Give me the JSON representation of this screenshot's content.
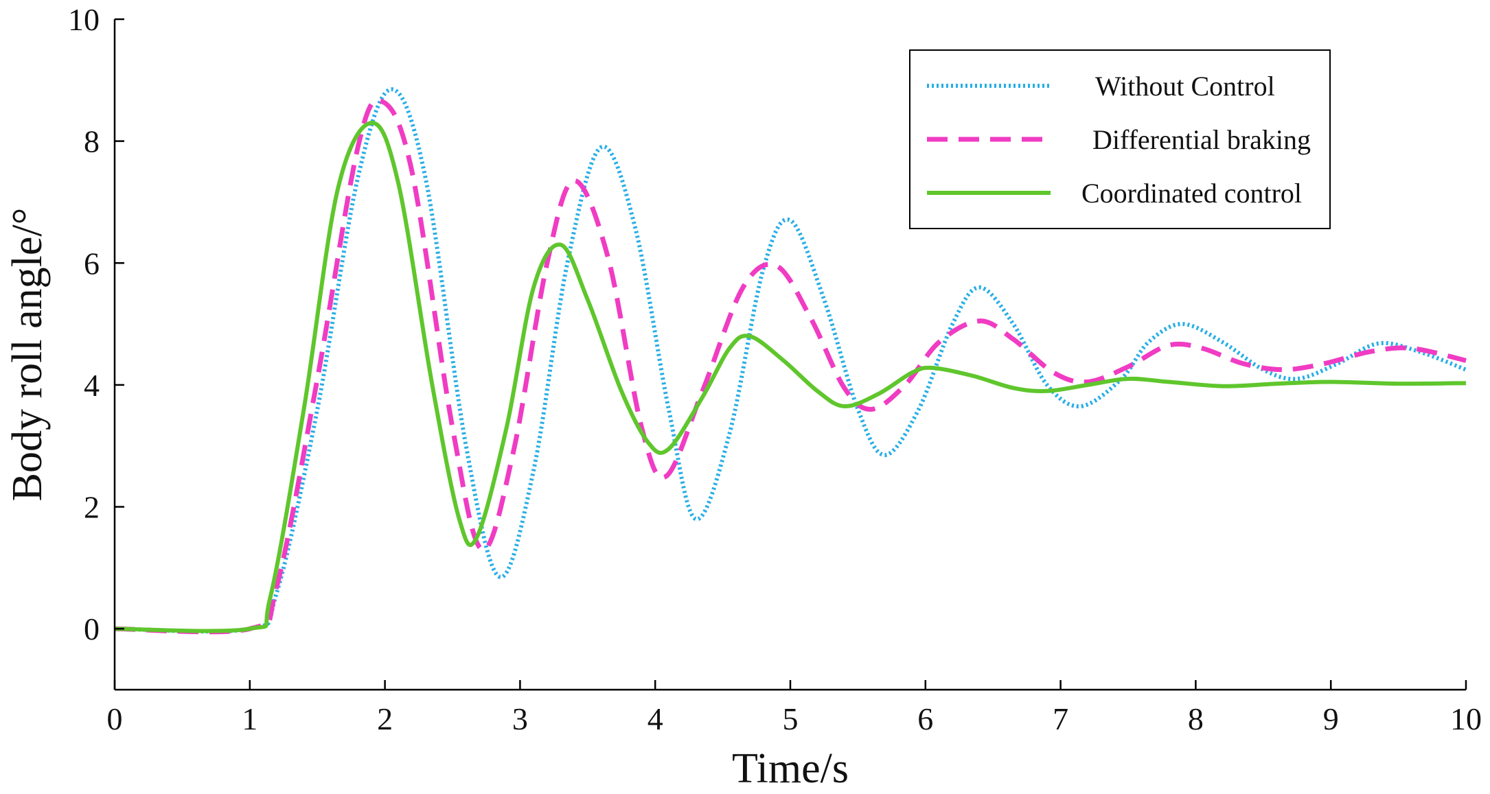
{
  "chart_data": {
    "type": "line",
    "title": "",
    "xlabel": "Time/s",
    "ylabel": "Body roll angle/°",
    "xlim": [
      0,
      10
    ],
    "ylim": [
      -1,
      10
    ],
    "xticks": [
      0,
      1,
      2,
      3,
      4,
      5,
      6,
      7,
      8,
      9,
      10
    ],
    "yticks": [
      0,
      2,
      4,
      6,
      8,
      10
    ],
    "grid": false,
    "legend_position": "top-right",
    "series": [
      {
        "name": "Without Control",
        "color": "#27aee6",
        "style": "dotted",
        "points": [
          [
            0,
            0
          ],
          [
            1.0,
            0
          ],
          [
            1.2,
            0.6
          ],
          [
            1.5,
            3.6
          ],
          [
            1.8,
            7.4
          ],
          [
            2.05,
            8.85
          ],
          [
            2.3,
            7.4
          ],
          [
            2.6,
            3.0
          ],
          [
            2.85,
            0.85
          ],
          [
            3.1,
            2.6
          ],
          [
            3.35,
            6.0
          ],
          [
            3.6,
            7.9
          ],
          [
            3.85,
            6.6
          ],
          [
            4.1,
            3.6
          ],
          [
            4.3,
            1.8
          ],
          [
            4.55,
            3.2
          ],
          [
            4.8,
            5.9
          ],
          [
            5.0,
            6.7
          ],
          [
            5.25,
            5.4
          ],
          [
            5.5,
            3.6
          ],
          [
            5.7,
            2.85
          ],
          [
            5.95,
            3.6
          ],
          [
            6.2,
            5.0
          ],
          [
            6.4,
            5.6
          ],
          [
            6.65,
            5.0
          ],
          [
            6.9,
            4.0
          ],
          [
            7.15,
            3.65
          ],
          [
            7.45,
            4.1
          ],
          [
            7.65,
            4.7
          ],
          [
            7.9,
            5.0
          ],
          [
            8.2,
            4.7
          ],
          [
            8.5,
            4.25
          ],
          [
            8.75,
            4.1
          ],
          [
            9.05,
            4.35
          ],
          [
            9.35,
            4.68
          ],
          [
            9.65,
            4.55
          ],
          [
            10.0,
            4.25
          ]
        ]
      },
      {
        "name": "Differential braking",
        "color": "#f03cc3",
        "style": "dashed",
        "points": [
          [
            0,
            0
          ],
          [
            1.0,
            0
          ],
          [
            1.2,
            0.7
          ],
          [
            1.5,
            4.1
          ],
          [
            1.8,
            7.9
          ],
          [
            1.98,
            8.65
          ],
          [
            2.2,
            7.5
          ],
          [
            2.5,
            3.3
          ],
          [
            2.72,
            1.3
          ],
          [
            2.95,
            2.9
          ],
          [
            3.2,
            6.0
          ],
          [
            3.4,
            7.35
          ],
          [
            3.65,
            6.1
          ],
          [
            3.9,
            3.3
          ],
          [
            4.08,
            2.5
          ],
          [
            4.35,
            3.9
          ],
          [
            4.65,
            5.6
          ],
          [
            4.9,
            5.95
          ],
          [
            5.15,
            5.1
          ],
          [
            5.4,
            3.95
          ],
          [
            5.6,
            3.6
          ],
          [
            5.85,
            4.0
          ],
          [
            6.1,
            4.7
          ],
          [
            6.4,
            5.05
          ],
          [
            6.65,
            4.75
          ],
          [
            6.95,
            4.2
          ],
          [
            7.2,
            4.05
          ],
          [
            7.5,
            4.3
          ],
          [
            7.8,
            4.65
          ],
          [
            8.05,
            4.6
          ],
          [
            8.35,
            4.35
          ],
          [
            8.65,
            4.25
          ],
          [
            8.95,
            4.35
          ],
          [
            9.3,
            4.55
          ],
          [
            9.6,
            4.6
          ],
          [
            10.0,
            4.4
          ]
        ]
      },
      {
        "name": "Coordinated control",
        "color": "#5fc62c",
        "style": "solid",
        "points": [
          [
            0,
            0
          ],
          [
            1.0,
            0
          ],
          [
            1.15,
            0.5
          ],
          [
            1.4,
            3.6
          ],
          [
            1.65,
            7.2
          ],
          [
            1.9,
            8.3
          ],
          [
            2.1,
            7.3
          ],
          [
            2.35,
            4.0
          ],
          [
            2.55,
            1.8
          ],
          [
            2.68,
            1.5
          ],
          [
            2.9,
            3.3
          ],
          [
            3.1,
            5.6
          ],
          [
            3.3,
            6.3
          ],
          [
            3.5,
            5.4
          ],
          [
            3.75,
            3.9
          ],
          [
            3.95,
            3.05
          ],
          [
            4.1,
            2.95
          ],
          [
            4.35,
            3.8
          ],
          [
            4.55,
            4.6
          ],
          [
            4.7,
            4.8
          ],
          [
            4.95,
            4.4
          ],
          [
            5.2,
            3.9
          ],
          [
            5.4,
            3.65
          ],
          [
            5.65,
            3.85
          ],
          [
            5.9,
            4.2
          ],
          [
            6.05,
            4.28
          ],
          [
            6.35,
            4.15
          ],
          [
            6.65,
            3.95
          ],
          [
            6.9,
            3.9
          ],
          [
            7.2,
            4.0
          ],
          [
            7.5,
            4.1
          ],
          [
            7.8,
            4.05
          ],
          [
            8.2,
            3.98
          ],
          [
            8.6,
            4.02
          ],
          [
            9.0,
            4.05
          ],
          [
            9.5,
            4.02
          ],
          [
            10.0,
            4.03
          ]
        ]
      }
    ]
  }
}
